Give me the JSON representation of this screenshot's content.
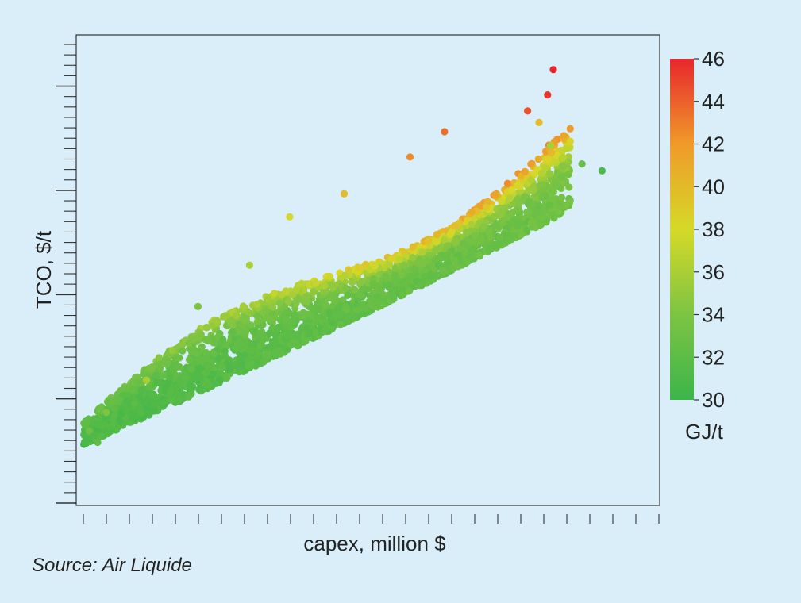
{
  "chart_data": {
    "type": "scatter",
    "title": "",
    "xlabel": "capex, million $",
    "ylabel": "TCO, $/t",
    "xlim": [
      0,
      100
    ],
    "ylim": [
      0,
      100
    ],
    "x_tick_labels_shown": false,
    "y_tick_labels_shown": false,
    "grid": false,
    "legend": "none",
    "color_variable": {
      "label": "GJ/t",
      "range": [
        30,
        46
      ],
      "ticks": [
        30,
        32,
        34,
        36,
        38,
        40,
        42,
        44,
        46
      ],
      "tick_labels": [
        "30",
        "32",
        "34",
        "36",
        "38",
        "40",
        "42",
        "44",
        "46"
      ],
      "colors": [
        "#3cb54a",
        "#7dc443",
        "#d6d928",
        "#f09a2a",
        "#e8262d"
      ]
    },
    "annotation_points": [
      {
        "x": 1.0,
        "y": 15.0,
        "c": 33.0
      },
      {
        "x": 2.5,
        "y": 12.5,
        "c": 32.0
      },
      {
        "x": 4.0,
        "y": 19.0,
        "c": 34.0
      },
      {
        "x": 11.0,
        "y": 26.0,
        "c": 36.0
      },
      {
        "x": 15.5,
        "y": 32.5,
        "c": 35.0
      },
      {
        "x": 20.0,
        "y": 42.0,
        "c": 34.0
      },
      {
        "x": 29.0,
        "y": 51.0,
        "c": 36.0
      },
      {
        "x": 36.0,
        "y": 61.5,
        "c": 38.0
      },
      {
        "x": 45.5,
        "y": 66.5,
        "c": 40.0
      },
      {
        "x": 57.0,
        "y": 74.5,
        "c": 42.5
      },
      {
        "x": 63.0,
        "y": 80.0,
        "c": 43.5
      },
      {
        "x": 77.5,
        "y": 84.5,
        "c": 44.5
      },
      {
        "x": 82.0,
        "y": 93.5,
        "c": 46.0
      },
      {
        "x": 81.0,
        "y": 88.0,
        "c": 45.5
      },
      {
        "x": 90.5,
        "y": 71.5,
        "c": 31.0
      },
      {
        "x": 87.0,
        "y": 73.0,
        "c": 32.5
      },
      {
        "x": 81.5,
        "y": 77.0,
        "c": 36.0
      },
      {
        "x": 79.5,
        "y": 82.0,
        "c": 40.0
      }
    ]
  },
  "colorbar": {
    "unit": "GJ/t",
    "labels": [
      "46",
      "44",
      "42",
      "40",
      "38",
      "36",
      "34",
      "32",
      "30"
    ]
  },
  "source": "Source: Air Liquide"
}
